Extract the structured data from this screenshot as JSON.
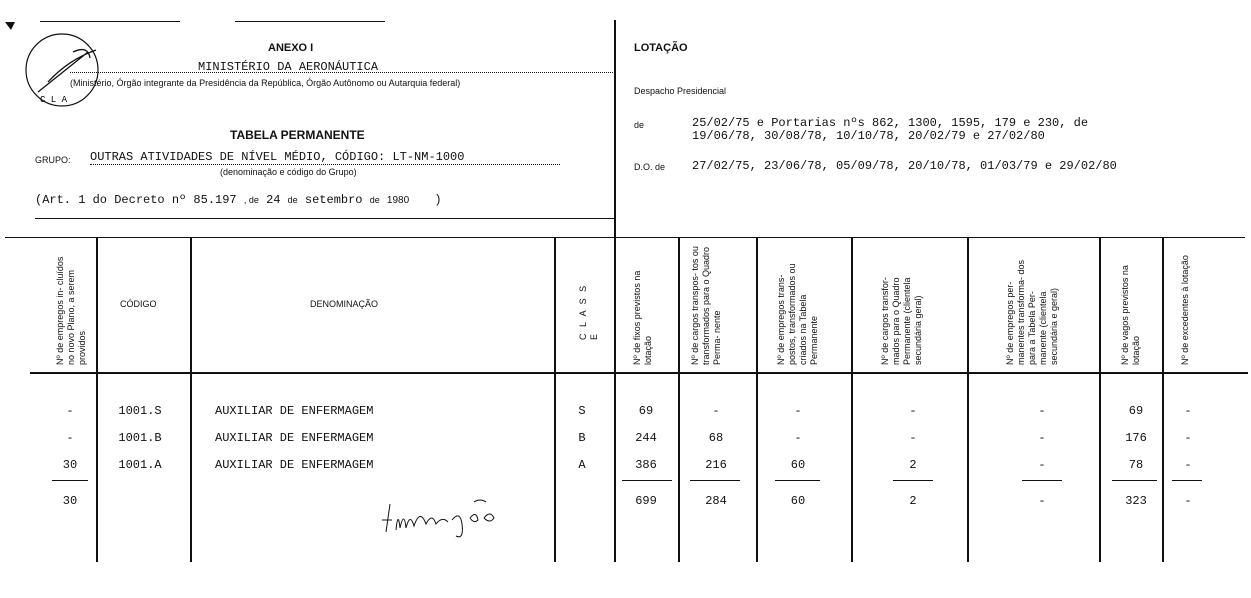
{
  "header_left": {
    "annex": "ANEXO I",
    "ministry": "MINISTÉRIO DA AERONÁUTICA",
    "ministry_caption": "(Ministério, Órgão integrante da Presidência da República, Órgão Autônomo ou Autarquia federal)",
    "table_title": "TABELA PERMANENTE",
    "group_label": "GRUPO:",
    "group_value": "OUTRAS ATIVIDADES DE NÍVEL MÉDIO, CÓDIGO: LT-NM-1000",
    "group_caption": "(denominação e código do Grupo)",
    "art_prefix": "(Art. 1 do Decreto nº 85.197",
    "art_de": ", de",
    "art_day": "24",
    "art_de2": "de",
    "art_month": "setembro",
    "art_de3": "de",
    "art_year": "1980",
    "art_close": ")",
    "stamp_text": "C L A"
  },
  "header_right": {
    "lotacao": "LOTAÇÃO",
    "despacho": "Despacho Presidencial",
    "de_label": "de",
    "de_line1": "25/02/75 e Portarias nºs 862, 1300, 1595, 179 e 230, de",
    "de_line2": "19/06/78, 30/08/78, 10/10/78, 20/02/79 e 27/02/80",
    "do_label": "D.O. de",
    "do_value": "27/02/75, 23/06/78, 05/09/78, 20/10/78, 01/03/79 e 29/02/80"
  },
  "columns": [
    "Nº de empregos in- cluídos no novo Plano, a serem providos",
    "CÓDIGO",
    "DENOMINAÇÃO",
    "C L A S S E",
    "Nº de fixos previstos na lotação",
    "Nº de cargos transpos- tos ou transformados para o Quadro Perma- nente",
    "Nº de empregos trans- postos, transformados ou criados na Tabela Permanente",
    "Nº de cargos transfor- mados para o Quadro Permanente (clientela secundária geral)",
    "Nº de empregos per- manentes transforma- dos para a Tabela Per- manente (clientela secundária e geral)",
    "Nº de vagos previstos na lotação",
    "Nº de excedentes à lotação"
  ],
  "rows": [
    [
      "-",
      "1001.S",
      "AUXILIAR DE ENFERMAGEM",
      "S",
      "69",
      "-",
      "-",
      "-",
      "-",
      "69",
      "-"
    ],
    [
      "-",
      "1001.B",
      "AUXILIAR DE ENFERMAGEM",
      "B",
      "244",
      "68",
      "-",
      "-",
      "-",
      "176",
      "-"
    ],
    [
      "30",
      "1001.A",
      "AUXILIAR DE ENFERMAGEM",
      "A",
      "386",
      "216",
      "60",
      "2",
      "-",
      "78",
      "-"
    ]
  ],
  "totals": [
    "30",
    "",
    "",
    "",
    "699",
    "284",
    "60",
    "2",
    "-",
    "323",
    "-"
  ],
  "signature": "A. Conceição"
}
